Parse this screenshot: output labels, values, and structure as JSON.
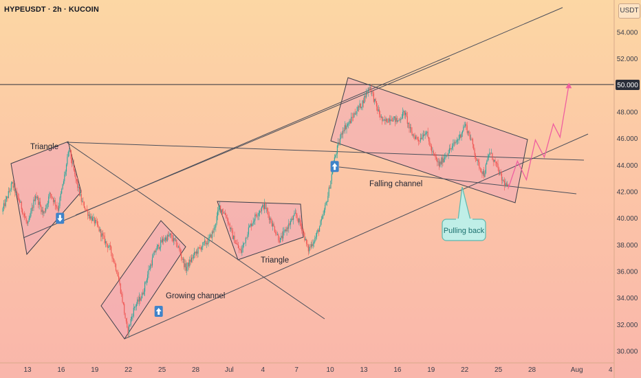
{
  "header": {
    "title": "HYPEUSDT · 2h · KUCOIN"
  },
  "axis": {
    "unit_label": "USDT"
  },
  "chart_data": {
    "type": "candlestick",
    "symbol": "HYPEUSDT",
    "timeframe": "2h",
    "exchange": "KUCOIN",
    "y_axis": {
      "ylim": [
        29.5,
        56.0
      ],
      "ticks": [
        "30.000",
        "32.000",
        "34.000",
        "36.000",
        "38.000",
        "40.000",
        "42.000",
        "44.000",
        "46.000",
        "48.000",
        "50.000",
        "52.000",
        "54.000"
      ],
      "tick_values": [
        30,
        32,
        34,
        36,
        38,
        40,
        42,
        44,
        46,
        48,
        50,
        52,
        54
      ],
      "highlight_level": {
        "value": 50.0,
        "label": "50.000"
      }
    },
    "x_axis": {
      "ticks": [
        "13",
        "16",
        "19",
        "22",
        "25",
        "28",
        "Jul",
        "4",
        "7",
        "10",
        "13",
        "16",
        "19",
        "22",
        "25",
        "28",
        "Aug",
        "4"
      ],
      "tick_days": [
        0,
        3,
        6,
        9,
        12,
        15,
        18,
        21,
        24,
        27,
        30,
        33,
        36,
        39,
        42,
        45,
        49,
        52
      ],
      "day_range": [
        -2.2,
        54.5
      ]
    },
    "price_path": [
      [
        -2.2,
        40.5
      ],
      [
        -1.3,
        42.6
      ],
      [
        -0.6,
        41.2
      ],
      [
        0.1,
        39.4
      ],
      [
        0.8,
        41.8
      ],
      [
        1.5,
        40.3
      ],
      [
        2.1,
        41.9
      ],
      [
        2.8,
        40.7
      ],
      [
        3.3,
        42.8
      ],
      [
        3.8,
        45.2
      ],
      [
        4.3,
        43.2
      ],
      [
        4.9,
        41.3
      ],
      [
        5.6,
        40.2
      ],
      [
        6.2,
        39.6
      ],
      [
        6.9,
        38.4
      ],
      [
        7.5,
        37.6
      ],
      [
        8.1,
        35.9
      ],
      [
        8.6,
        33.6
      ],
      [
        9.0,
        31.4
      ],
      [
        9.6,
        33.3
      ],
      [
        10.3,
        34.2
      ],
      [
        10.9,
        36.1
      ],
      [
        11.5,
        37.6
      ],
      [
        12.2,
        38.4
      ],
      [
        12.8,
        38.7
      ],
      [
        13.5,
        37.9
      ],
      [
        14.2,
        36.2
      ],
      [
        14.9,
        37.2
      ],
      [
        15.6,
        37.9
      ],
      [
        16.2,
        38.3
      ],
      [
        16.7,
        39.1
      ],
      [
        17.2,
        40.9
      ],
      [
        17.8,
        40.2
      ],
      [
        18.4,
        38.6
      ],
      [
        19.1,
        37.4
      ],
      [
        19.8,
        39.2
      ],
      [
        20.5,
        40.3
      ],
      [
        21.2,
        41.0
      ],
      [
        21.9,
        39.6
      ],
      [
        22.6,
        38.3
      ],
      [
        23.3,
        39.4
      ],
      [
        24.0,
        40.3
      ],
      [
        24.6,
        39.2
      ],
      [
        25.1,
        37.6
      ],
      [
        25.8,
        38.6
      ],
      [
        26.4,
        40.0
      ],
      [
        26.9,
        41.8
      ],
      [
        27.5,
        44.6
      ],
      [
        28.2,
        46.7
      ],
      [
        28.8,
        47.2
      ],
      [
        29.4,
        48.1
      ],
      [
        29.9,
        48.6
      ],
      [
        30.3,
        49.4
      ],
      [
        30.6,
        50.0
      ],
      [
        31.2,
        48.4
      ],
      [
        31.8,
        47.2
      ],
      [
        32.5,
        47.6
      ],
      [
        33.1,
        47.3
      ],
      [
        33.7,
        48.0
      ],
      [
        34.3,
        46.4
      ],
      [
        35.0,
        45.9
      ],
      [
        35.6,
        46.6
      ],
      [
        36.2,
        44.9
      ],
      [
        36.8,
        44.0
      ],
      [
        37.4,
        44.8
      ],
      [
        38.0,
        45.4
      ],
      [
        38.6,
        46.1
      ],
      [
        39.1,
        47.1
      ],
      [
        39.7,
        45.8
      ],
      [
        40.2,
        44.2
      ],
      [
        40.8,
        43.3
      ],
      [
        41.3,
        45.0
      ],
      [
        41.9,
        44.0
      ],
      [
        42.4,
        42.9
      ],
      [
        42.9,
        42.3
      ]
    ],
    "projection_path": [
      [
        42.9,
        42.3
      ],
      [
        43.7,
        44.3
      ],
      [
        44.5,
        42.9
      ],
      [
        45.3,
        45.9
      ],
      [
        46.1,
        44.6
      ],
      [
        46.9,
        47.1
      ],
      [
        47.5,
        46.1
      ],
      [
        48.3,
        50.1
      ]
    ],
    "patterns": [
      {
        "type": "triangle",
        "label": "Triangle"
      },
      {
        "type": "growing-channel",
        "label": "Growing channel"
      },
      {
        "type": "triangle",
        "label": "Triangle"
      },
      {
        "type": "falling-channel",
        "label": "Falling channel"
      }
    ],
    "annotations": [
      {
        "type": "callout",
        "label": "Pulling back"
      },
      {
        "type": "arrow",
        "direction": "down",
        "x_day": 2.9,
        "y_price": 40.0
      },
      {
        "type": "arrow",
        "direction": "up",
        "x_day": 11.7,
        "y_price": 33.0
      },
      {
        "type": "arrow",
        "direction": "up",
        "x_day": 27.4,
        "y_price": 43.9
      }
    ],
    "colors": {
      "up": "#26a69a",
      "down": "#ef5350",
      "pattern_fill": "#f0a8b8",
      "pattern_stroke": "#3a3e4a",
      "callout": "#6fc9c0",
      "arrow_badge": "#3f83c9",
      "projection": "#ef5ea0"
    }
  }
}
